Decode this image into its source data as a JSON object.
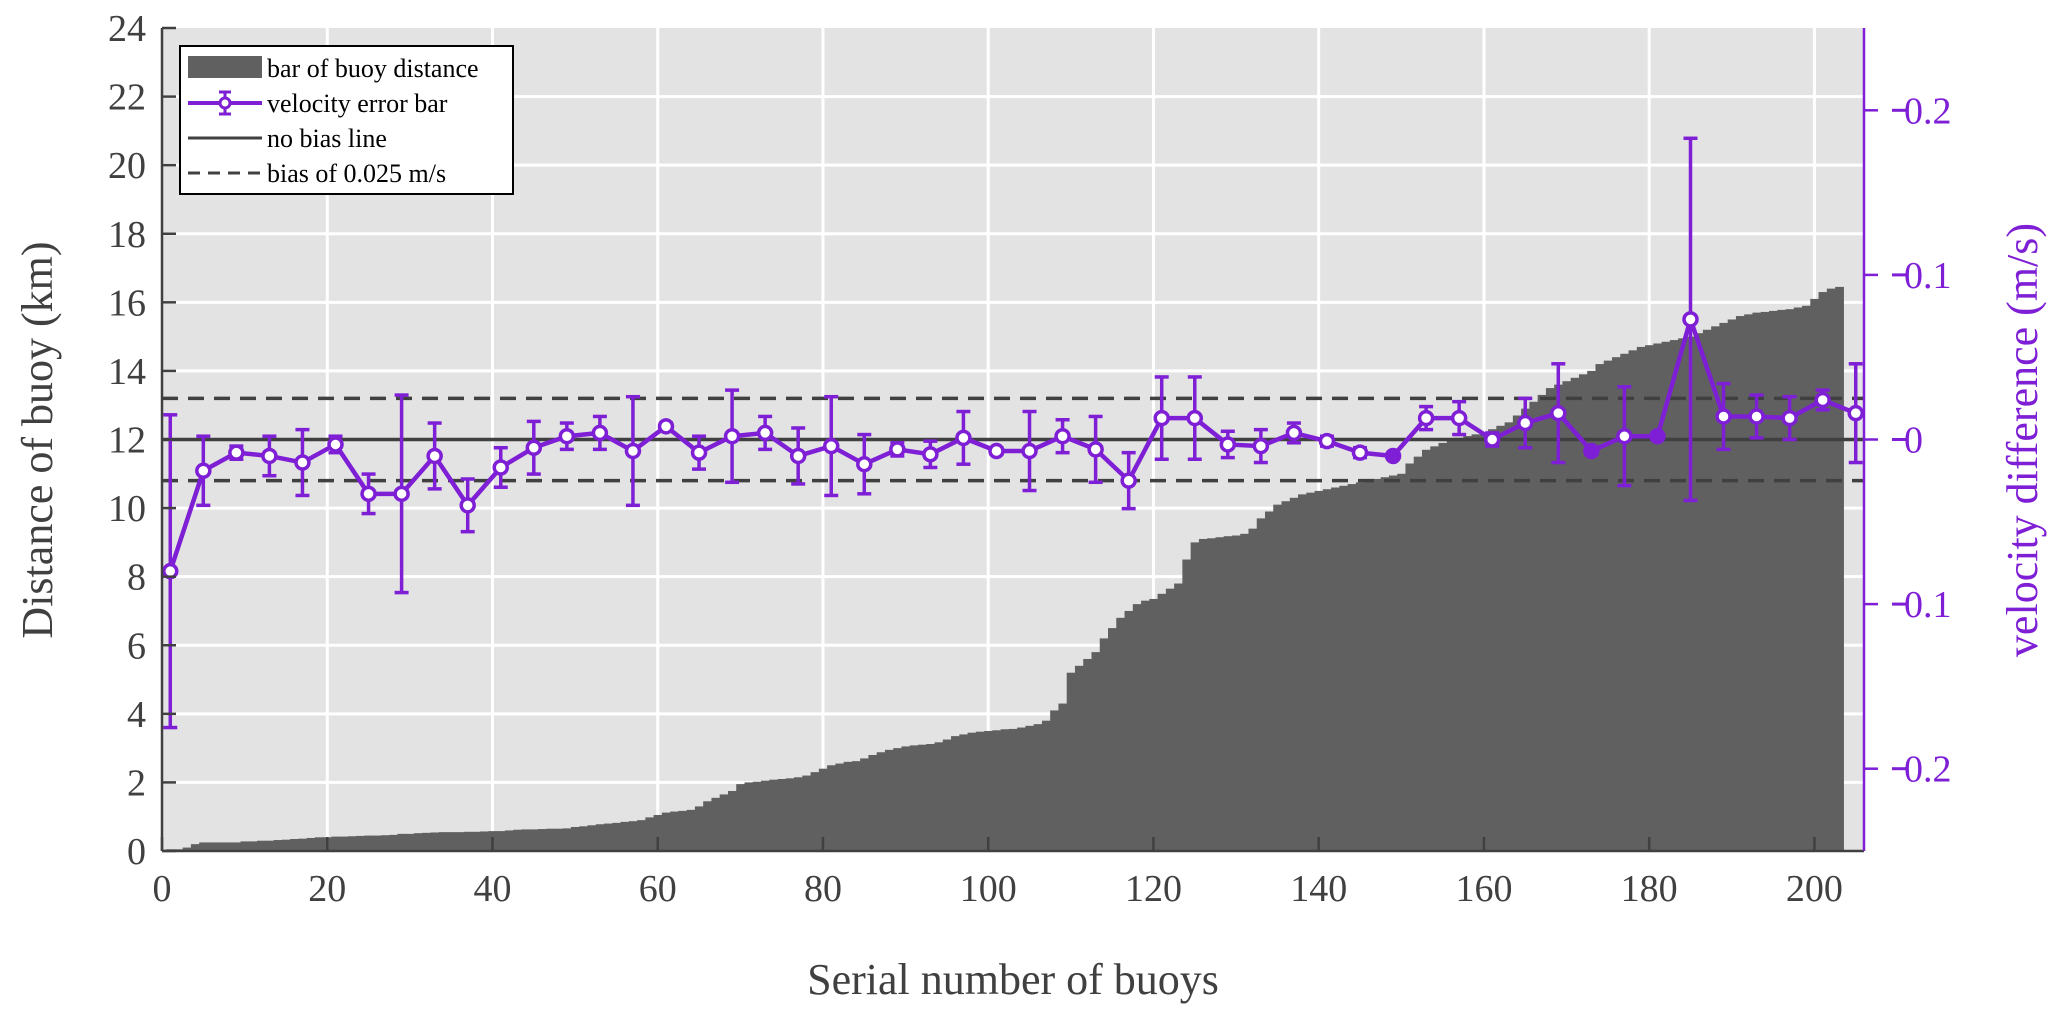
{
  "chart_data": {
    "type": "bar",
    "xlabel": "Serial number of buoys",
    "ylabel_left": "Distance of buoy (km)",
    "ylabel_right": "velocity difference (m/s)",
    "xlim": [
      0,
      206
    ],
    "xticks": [
      0,
      20,
      40,
      60,
      80,
      100,
      120,
      140,
      160,
      180,
      200
    ],
    "ylim_left": [
      0,
      24
    ],
    "yticks_left": [
      0,
      2,
      4,
      6,
      8,
      10,
      12,
      14,
      16,
      18,
      20,
      22,
      24
    ],
    "ylim_right": [
      -0.25,
      0.25
    ],
    "yticks_right": [
      -0.2,
      -0.1,
      0,
      0.1,
      0.2
    ],
    "ytick_labels_right": [
      "-0.2",
      "-0.1",
      "0",
      "0.1",
      "0.2"
    ],
    "grid": true,
    "legend_position": "top-left",
    "legend": [
      {
        "label": "bar of buoy distance",
        "kind": "bar"
      },
      {
        "label": "velocity error bar",
        "kind": "errorbar"
      },
      {
        "label": "no bias line",
        "kind": "solid"
      },
      {
        "label": "bias of 0.025 m/s",
        "kind": "dashed"
      }
    ],
    "colors": {
      "bar": "#606060",
      "errorbar": "#7e1fd6",
      "bias_lines": "#404040",
      "plot_background": "#e3e3e3",
      "grid": "#ffffff"
    },
    "bar_series": {
      "name": "bar of buoy distance",
      "x_start": 1,
      "values": [
        0.05,
        0.05,
        0.1,
        0.2,
        0.25,
        0.25,
        0.25,
        0.25,
        0.25,
        0.28,
        0.28,
        0.3,
        0.3,
        0.32,
        0.33,
        0.35,
        0.36,
        0.38,
        0.4,
        0.4,
        0.42,
        0.42,
        0.43,
        0.44,
        0.45,
        0.45,
        0.46,
        0.47,
        0.5,
        0.5,
        0.52,
        0.53,
        0.54,
        0.55,
        0.55,
        0.55,
        0.56,
        0.56,
        0.57,
        0.58,
        0.58,
        0.6,
        0.62,
        0.63,
        0.63,
        0.64,
        0.65,
        0.65,
        0.66,
        0.7,
        0.72,
        0.75,
        0.78,
        0.8,
        0.82,
        0.85,
        0.87,
        0.9,
        0.98,
        1.05,
        1.12,
        1.15,
        1.17,
        1.2,
        1.3,
        1.45,
        1.55,
        1.65,
        1.75,
        1.95,
        2.0,
        2.02,
        2.05,
        2.08,
        2.1,
        2.12,
        2.15,
        2.2,
        2.3,
        2.4,
        2.5,
        2.55,
        2.6,
        2.62,
        2.7,
        2.8,
        2.88,
        2.95,
        3.0,
        3.05,
        3.08,
        3.1,
        3.12,
        3.17,
        3.25,
        3.35,
        3.4,
        3.45,
        3.48,
        3.5,
        3.52,
        3.55,
        3.56,
        3.6,
        3.65,
        3.7,
        3.8,
        4.1,
        4.3,
        5.2,
        5.4,
        5.6,
        5.8,
        6.2,
        6.5,
        6.8,
        7.0,
        7.2,
        7.3,
        7.35,
        7.5,
        7.65,
        7.8,
        8.5,
        9.0,
        9.1,
        9.12,
        9.15,
        9.18,
        9.2,
        9.25,
        9.4,
        9.7,
        9.9,
        10.1,
        10.2,
        10.3,
        10.4,
        10.45,
        10.5,
        10.55,
        10.6,
        10.65,
        10.7,
        10.75,
        10.8,
        10.85,
        10.9,
        10.95,
        11.0,
        11.3,
        11.5,
        11.7,
        11.8,
        11.9,
        12.0,
        12.05,
        12.1,
        12.15,
        12.2,
        12.3,
        12.4,
        12.5,
        12.7,
        12.9,
        13.1,
        13.3,
        13.5,
        13.6,
        13.7,
        13.8,
        13.9,
        14.0,
        14.2,
        14.3,
        14.4,
        14.5,
        14.6,
        14.7,
        14.75,
        14.8,
        14.85,
        14.9,
        14.95,
        15.0,
        15.1,
        15.2,
        15.3,
        15.4,
        15.5,
        15.6,
        15.65,
        15.7,
        15.72,
        15.75,
        15.78,
        15.8,
        15.85,
        15.9,
        16.1,
        16.3,
        16.4,
        16.45
      ]
    },
    "errorbar_series": {
      "name": "velocity error bar",
      "x": [
        1,
        5,
        9,
        13,
        17,
        21,
        25,
        29,
        33,
        37,
        41,
        45,
        49,
        53,
        57,
        61,
        65,
        69,
        73,
        77,
        81,
        85,
        89,
        93,
        97,
        101,
        105,
        109,
        113,
        117,
        121,
        125,
        129,
        133,
        137,
        141,
        145,
        149,
        153,
        157,
        161,
        165,
        169,
        173,
        177,
        181,
        185,
        189,
        193,
        197,
        201,
        205
      ],
      "y": [
        -0.08,
        -0.019,
        -0.008,
        -0.01,
        -0.014,
        -0.003,
        -0.033,
        -0.033,
        -0.01,
        -0.04,
        -0.017,
        -0.005,
        0.002,
        0.004,
        -0.007,
        0.008,
        -0.008,
        0.002,
        0.004,
        -0.01,
        -0.004,
        -0.015,
        -0.006,
        -0.009,
        0.001,
        -0.007,
        -0.007,
        0.002,
        -0.006,
        -0.025,
        0.013,
        0.013,
        -0.003,
        -0.004,
        0.004,
        -0.001,
        -0.008,
        -0.01,
        0.013,
        0.013,
        0.0,
        0.01,
        0.016,
        -0.007,
        0.002,
        0.002,
        0.073,
        0.014,
        0.014,
        0.013,
        0.024,
        0.016
      ],
      "err_low": [
        0.095,
        0.021,
        0.004,
        0.012,
        0.02,
        0.005,
        0.012,
        0.06,
        0.02,
        0.016,
        0.012,
        0.016,
        0.008,
        0.01,
        0.033,
        0.002,
        0.01,
        0.028,
        0.01,
        0.017,
        0.03,
        0.018,
        0.004,
        0.008,
        0.016,
        0.002,
        0.024,
        0.01,
        0.02,
        0.017,
        0.025,
        0.025,
        0.008,
        0.01,
        0.006,
        0.003,
        0.003,
        0.0,
        0.007,
        0.01,
        0.004,
        0.015,
        0.03,
        0.0,
        0.03,
        0.0,
        0.11,
        0.02,
        0.013,
        0.013,
        0.006,
        0.03
      ]
    },
    "bias_lines": [
      {
        "name": "no bias line",
        "y": 0,
        "style": "solid"
      },
      {
        "name": "bias of 0.025 m/s",
        "y": 0.025,
        "style": "dashed"
      },
      {
        "name": "bias of 0.025 m/s",
        "y": -0.025,
        "style": "dashed"
      }
    ]
  }
}
